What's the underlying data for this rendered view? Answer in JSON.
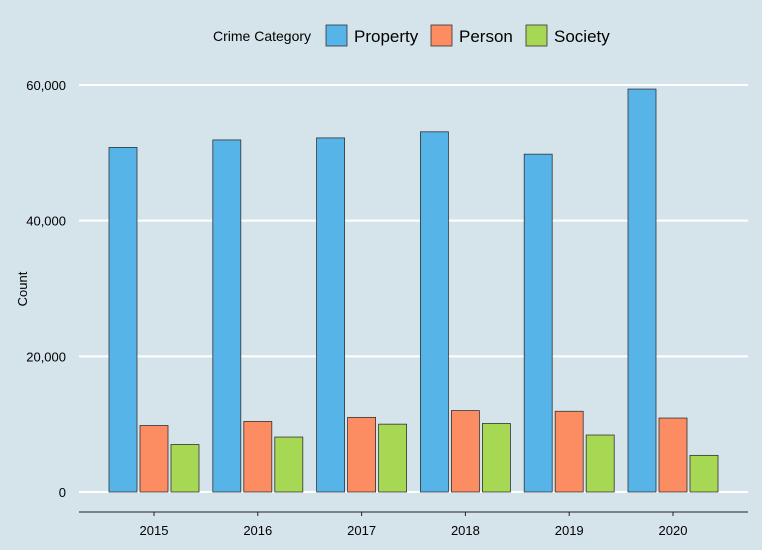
{
  "chart_data": {
    "type": "bar",
    "title": "",
    "xlabel": "",
    "ylabel": "Count",
    "legend_title": "Crime Category",
    "legend_position": "top",
    "grid": "horizontal",
    "ylim": [
      0,
      60000
    ],
    "yticks": [
      0,
      20000,
      40000,
      60000
    ],
    "ytick_labels": [
      "0",
      "20,000",
      "40,000",
      "60,000"
    ],
    "categories": [
      "2015",
      "2016",
      "2017",
      "2018",
      "2019",
      "2020"
    ],
    "series": [
      {
        "name": "Property",
        "color": "#56b4e9",
        "values": [
          50800,
          51900,
          52200,
          53100,
          49800,
          59400
        ]
      },
      {
        "name": "Person",
        "color": "#fc8d62",
        "values": [
          9800,
          10400,
          11000,
          12000,
          11900,
          10900
        ]
      },
      {
        "name": "Society",
        "color": "#a6d854",
        "values": [
          7000,
          8100,
          10000,
          10100,
          8400,
          5400
        ]
      }
    ]
  },
  "colors": {
    "background": "#d5e3eb",
    "gridline": "#ffffff",
    "bar_outline": "#333333"
  }
}
